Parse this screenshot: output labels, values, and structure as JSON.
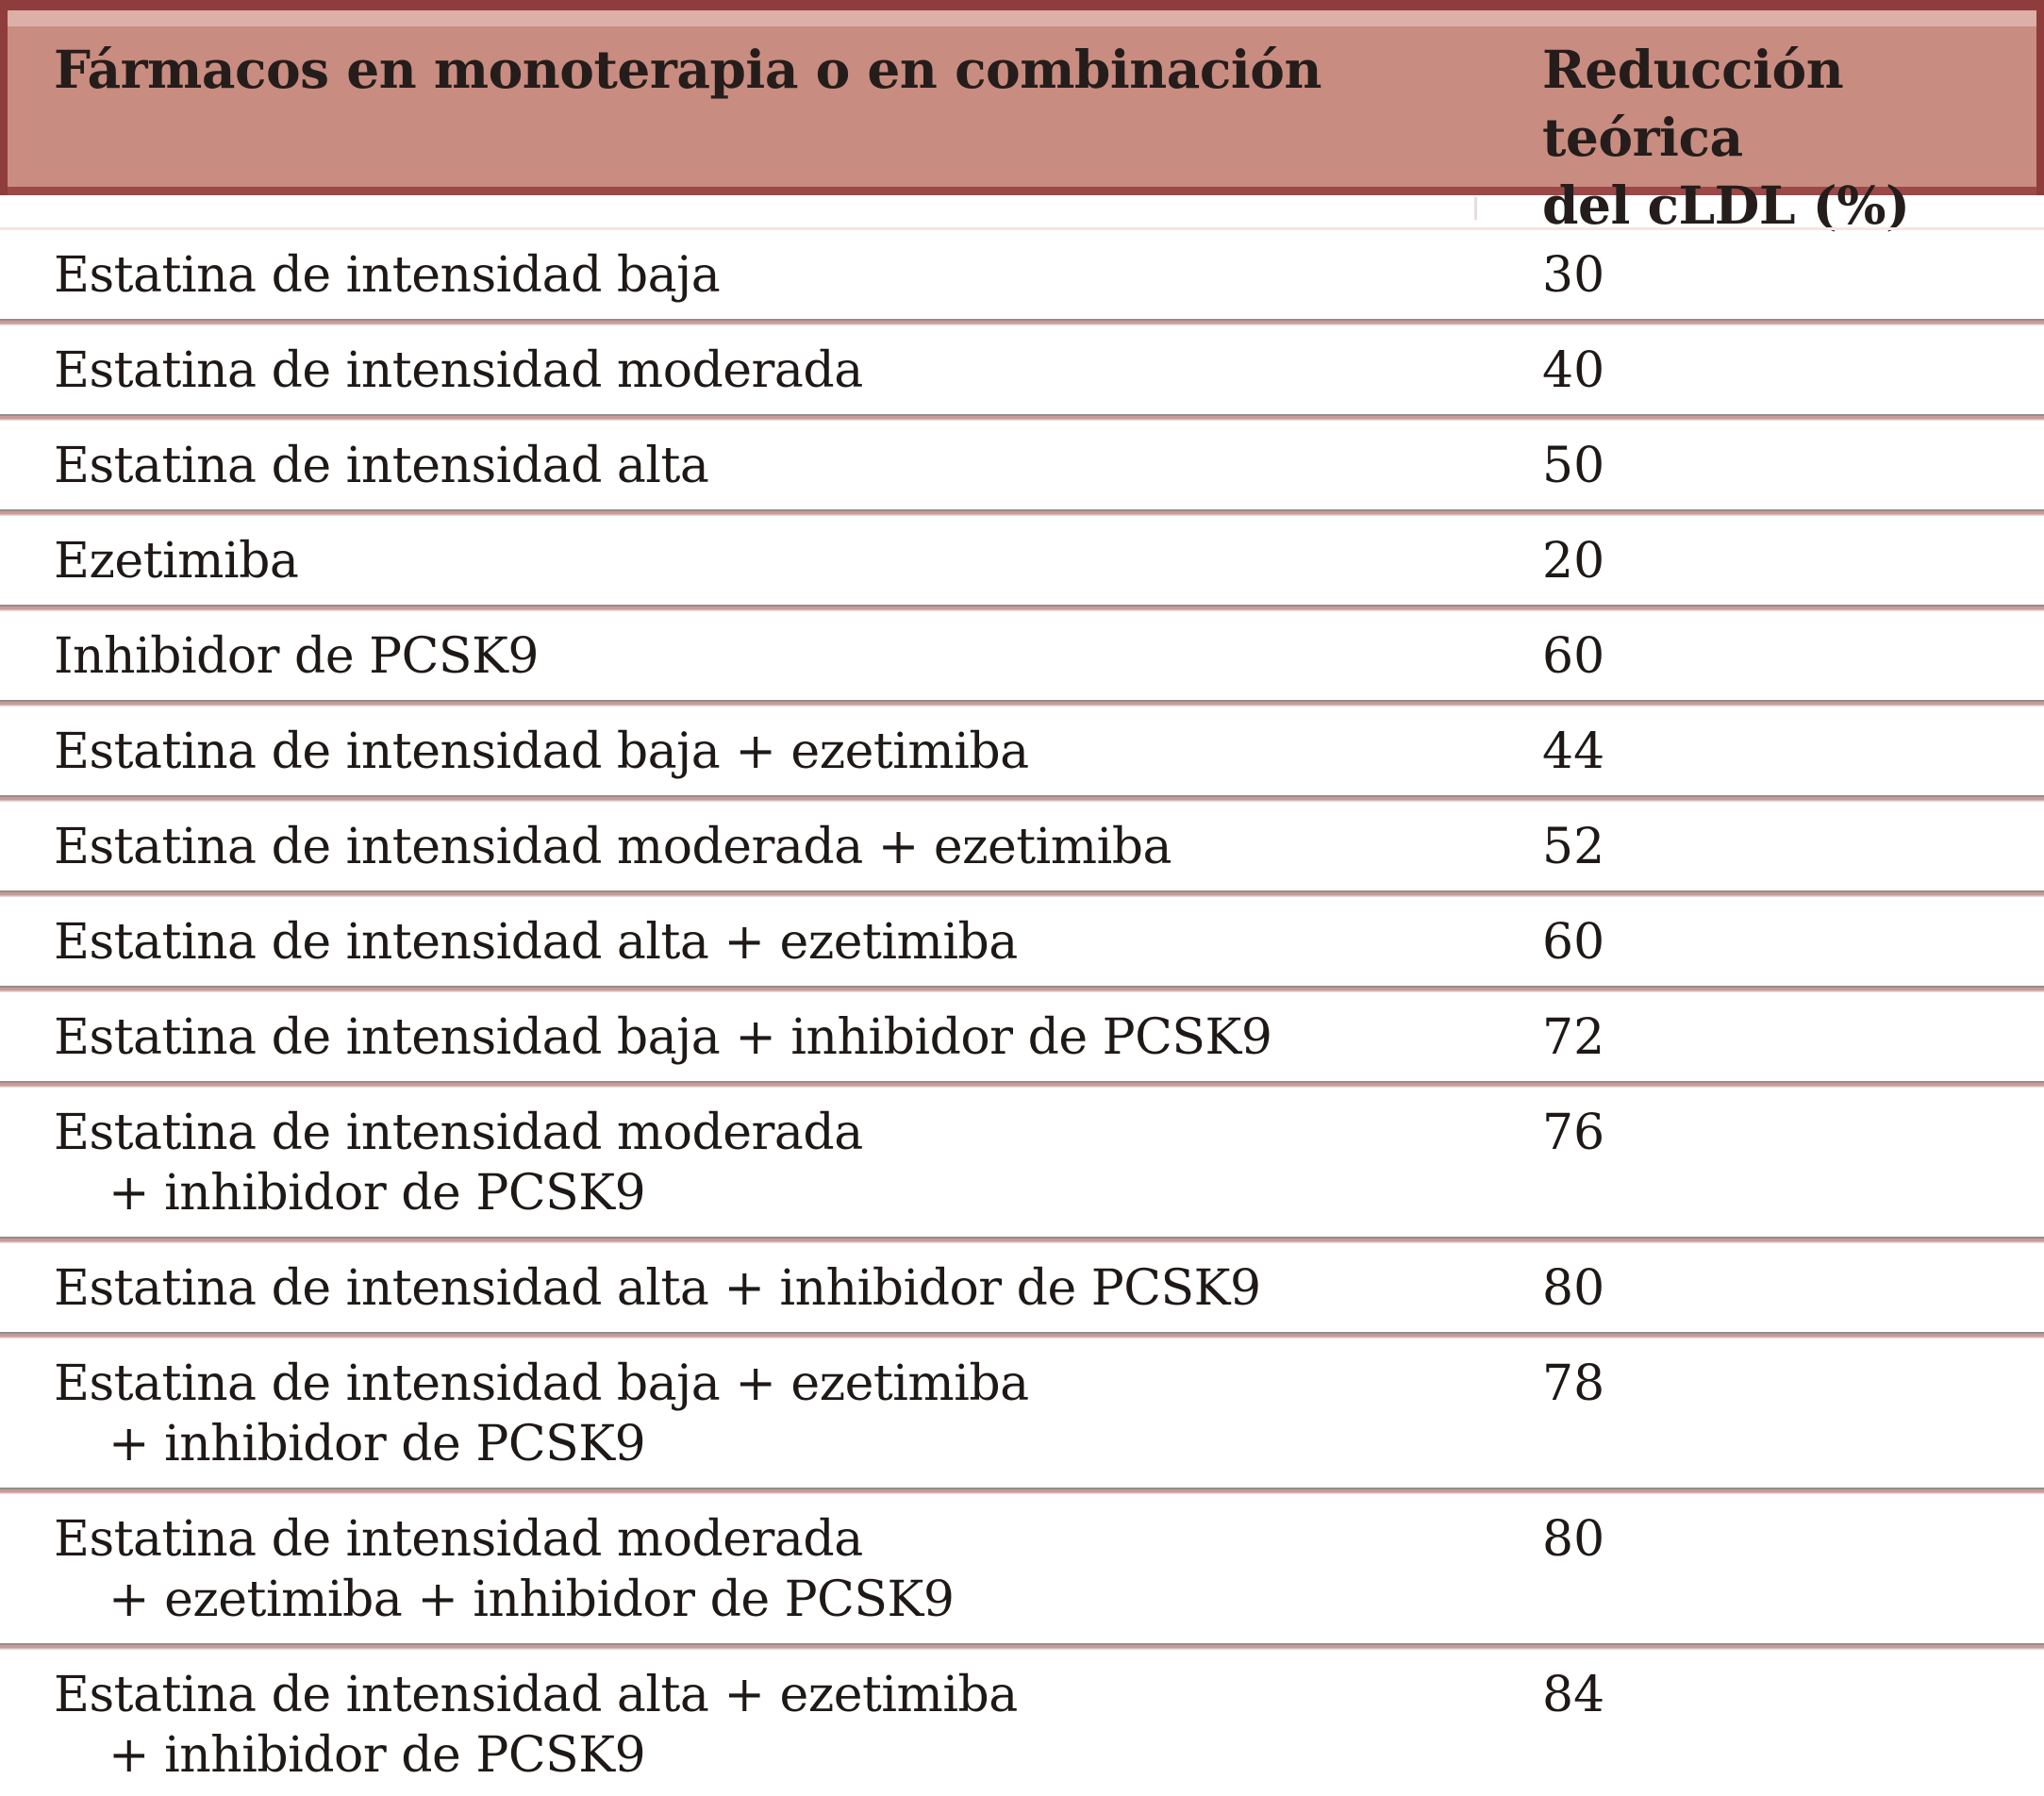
{
  "table": {
    "header": {
      "drug_label": "Fármacos en monoterapia o en combinación",
      "reduction_lines": [
        "Reducción teórica",
        "del cLDL (%)"
      ]
    },
    "rows": [
      {
        "lines": [
          "Estatina de intensidad baja"
        ],
        "value": "30"
      },
      {
        "lines": [
          "Estatina de intensidad moderada"
        ],
        "value": "40"
      },
      {
        "lines": [
          "Estatina de intensidad alta"
        ],
        "value": "50"
      },
      {
        "lines": [
          "Ezetimiba"
        ],
        "value": "20"
      },
      {
        "lines": [
          "Inhibidor de PCSK9"
        ],
        "value": "60"
      },
      {
        "lines": [
          "Estatina de intensidad baja + ezetimiba"
        ],
        "value": "44"
      },
      {
        "lines": [
          "Estatina de intensidad moderada + ezetimiba"
        ],
        "value": "52"
      },
      {
        "lines": [
          "Estatina de intensidad alta + ezetimiba"
        ],
        "value": "60"
      },
      {
        "lines": [
          "Estatina de intensidad baja + inhibidor de PCSK9"
        ],
        "value": "72"
      },
      {
        "lines": [
          "Estatina de intensidad moderada",
          "+ inhibidor de PCSK9"
        ],
        "value": "76"
      },
      {
        "lines": [
          "Estatina de intensidad alta + inhibidor de PCSK9"
        ],
        "value": "80"
      },
      {
        "lines": [
          "Estatina de intensidad baja + ezetimiba",
          "+ inhibidor de PCSK9"
        ],
        "value": "78"
      },
      {
        "lines": [
          "Estatina de intensidad moderada",
          "+ ezetimiba + inhibidor de PCSK9"
        ],
        "value": "80"
      },
      {
        "lines": [
          "Estatina de intensidad alta + ezetimiba",
          "+ inhibidor de PCSK9"
        ],
        "value": "84"
      }
    ],
    "colors": {
      "header_background": "#c98c80",
      "header_highlight": "#dcb0a7",
      "dark_red_border": "#8e3c3c",
      "header_bottom_border": "#9c4848",
      "separator_pink": "#c99a96",
      "separator_gray": "#938d8d",
      "text": "#1e1917"
    }
  }
}
